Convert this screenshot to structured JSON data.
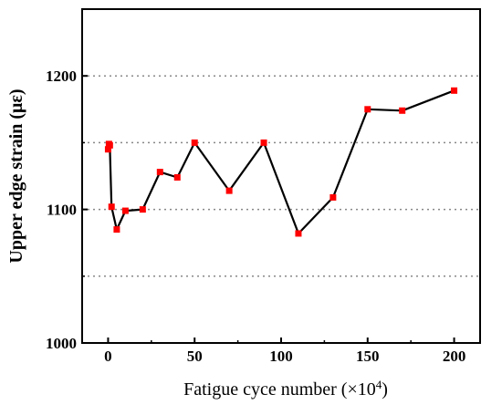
{
  "chart_data": {
    "type": "line",
    "xlabel_main": "Fatigue cyce number (×10",
    "xlabel_sup": "4",
    "xlabel_tail": ")",
    "ylabel": "Upper edge strain (με)",
    "xlim": [
      -15,
      215
    ],
    "ylim": [
      1000,
      1250
    ],
    "x_ticks": [
      0,
      50,
      100,
      150,
      200
    ],
    "x_tick_labels": [
      "0",
      "50",
      "100",
      "150",
      "200"
    ],
    "y_ticks": [
      1000,
      1100,
      1200
    ],
    "y_tick_labels": [
      "1000",
      "1100",
      "1200"
    ],
    "grid": {
      "horizontal_dotted_at": [
        1050,
        1100,
        1150,
        1200
      ]
    },
    "series": [
      {
        "x": [
          0,
          0.5,
          1,
          2,
          5,
          10,
          20,
          30,
          40,
          50,
          70,
          90,
          110,
          130,
          150,
          170,
          200
        ],
        "y": [
          1145,
          1149,
          1148,
          1102,
          1085,
          1099,
          1100,
          1128,
          1124,
          1150,
          1114,
          1150,
          1082,
          1109,
          1175,
          1174,
          1189
        ]
      }
    ],
    "colors": {
      "line": "#000000",
      "marker": "#ff0000",
      "grid": "#888888"
    }
  }
}
